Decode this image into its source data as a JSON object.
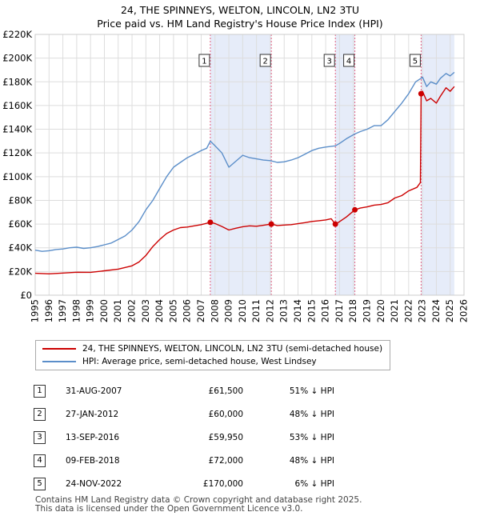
{
  "chart_data": {
    "type": "line",
    "title": "24, THE SPINNEYS, WELTON, LINCOLN, LN2 3TU",
    "subtitle": "Price paid vs. HM Land Registry's House Price Index (HPI)",
    "xlim": [
      1995,
      2026
    ],
    "ylim": [
      0,
      220000
    ],
    "x_ticks": [
      1995,
      1996,
      1997,
      1998,
      1999,
      2000,
      2001,
      2002,
      2003,
      2004,
      2005,
      2006,
      2007,
      2008,
      2009,
      2010,
      2011,
      2012,
      2013,
      2014,
      2015,
      2016,
      2017,
      2018,
      2019,
      2020,
      2021,
      2022,
      2023,
      2024,
      2025,
      2026
    ],
    "x_tick_labels": [
      "1995",
      "1996",
      "1997",
      "1998",
      "1999",
      "2000",
      "2001",
      "2002",
      "2003",
      "2004",
      "2005",
      "2006",
      "2007",
      "2008",
      "2009",
      "2010",
      "2011",
      "2012",
      "2013",
      "2014",
      "2015",
      "2016",
      "2017",
      "2018",
      "2019",
      "2020",
      "2021",
      "2022",
      "2023",
      "2024",
      "2025",
      "2026"
    ],
    "y_ticks": [
      0,
      20000,
      40000,
      60000,
      80000,
      100000,
      120000,
      140000,
      160000,
      180000,
      200000,
      220000
    ],
    "y_tick_labels": [
      "£0",
      "£20K",
      "£40K",
      "£60K",
      "£80K",
      "£100K",
      "£120K",
      "£140K",
      "£160K",
      "£180K",
      "£200K",
      "£220K"
    ],
    "shaded_ranges": [
      [
        2007.66,
        2012.07
      ],
      [
        2016.7,
        2018.11
      ],
      [
        2022.9,
        2025.3
      ]
    ],
    "series": [
      {
        "name": "24, THE SPINNEYS, WELTON, LINCOLN, LN2 3TU (semi-detached house)",
        "color": "#cc0000",
        "points": [
          [
            1995.0,
            18500
          ],
          [
            1996.0,
            18000
          ],
          [
            1997.0,
            18700
          ],
          [
            1998.0,
            19400
          ],
          [
            1999.0,
            19300
          ],
          [
            2000.0,
            20600
          ],
          [
            2001.0,
            22000
          ],
          [
            2002.0,
            24800
          ],
          [
            2002.5,
            28000
          ],
          [
            2003.0,
            33500
          ],
          [
            2003.5,
            41000
          ],
          [
            2004.0,
            47000
          ],
          [
            2004.5,
            52000
          ],
          [
            2005.0,
            55000
          ],
          [
            2005.5,
            57000
          ],
          [
            2006.0,
            57500
          ],
          [
            2006.5,
            58500
          ],
          [
            2007.0,
            59500
          ],
          [
            2007.66,
            61500
          ],
          [
            2008.0,
            60500
          ],
          [
            2008.5,
            58000
          ],
          [
            2009.0,
            55000
          ],
          [
            2009.5,
            56500
          ],
          [
            2010.0,
            57800
          ],
          [
            2010.5,
            58500
          ],
          [
            2011.0,
            58200
          ],
          [
            2011.5,
            59000
          ],
          [
            2012.07,
            60000
          ],
          [
            2012.5,
            58800
          ],
          [
            2013.0,
            59200
          ],
          [
            2013.5,
            59500
          ],
          [
            2014.0,
            60300
          ],
          [
            2014.5,
            61200
          ],
          [
            2015.0,
            62200
          ],
          [
            2015.5,
            62800
          ],
          [
            2016.0,
            63500
          ],
          [
            2016.4,
            64500
          ],
          [
            2016.7,
            59950
          ],
          [
            2017.0,
            62000
          ],
          [
            2017.5,
            66000
          ],
          [
            2018.11,
            72000
          ],
          [
            2018.5,
            73500
          ],
          [
            2019.0,
            74500
          ],
          [
            2019.5,
            76000
          ],
          [
            2020.0,
            76500
          ],
          [
            2020.5,
            78000
          ],
          [
            2021.0,
            82000
          ],
          [
            2021.5,
            84000
          ],
          [
            2022.0,
            88000
          ],
          [
            2022.6,
            91000
          ],
          [
            2022.85,
            95000
          ],
          [
            2022.9,
            170000
          ],
          [
            2023.0,
            172000
          ],
          [
            2023.3,
            164000
          ],
          [
            2023.6,
            166000
          ],
          [
            2024.0,
            162000
          ],
          [
            2024.3,
            168000
          ],
          [
            2024.7,
            175000
          ],
          [
            2025.0,
            172000
          ],
          [
            2025.3,
            176000
          ]
        ]
      },
      {
        "name": "HPI: Average price, semi-detached house, West Lindsey",
        "color": "#5b8ec9",
        "points": [
          [
            1995.0,
            38000
          ],
          [
            1995.5,
            37000
          ],
          [
            1996.0,
            37500
          ],
          [
            1996.5,
            38500
          ],
          [
            1997.0,
            39000
          ],
          [
            1997.5,
            40000
          ],
          [
            1998.0,
            40500
          ],
          [
            1998.5,
            39500
          ],
          [
            1999.0,
            40000
          ],
          [
            1999.5,
            41000
          ],
          [
            2000.0,
            42500
          ],
          [
            2000.5,
            44000
          ],
          [
            2001.0,
            47000
          ],
          [
            2001.5,
            50000
          ],
          [
            2002.0,
            55000
          ],
          [
            2002.5,
            62000
          ],
          [
            2003.0,
            72000
          ],
          [
            2003.5,
            80000
          ],
          [
            2004.0,
            90000
          ],
          [
            2004.5,
            100000
          ],
          [
            2005.0,
            108000
          ],
          [
            2005.5,
            112000
          ],
          [
            2006.0,
            116000
          ],
          [
            2006.5,
            119000
          ],
          [
            2007.0,
            122000
          ],
          [
            2007.4,
            124000
          ],
          [
            2007.66,
            130000
          ],
          [
            2008.0,
            126000
          ],
          [
            2008.5,
            120000
          ],
          [
            2009.0,
            108000
          ],
          [
            2009.5,
            113000
          ],
          [
            2010.0,
            118000
          ],
          [
            2010.5,
            116000
          ],
          [
            2011.0,
            115000
          ],
          [
            2011.5,
            114000
          ],
          [
            2012.0,
            113500
          ],
          [
            2012.5,
            112000
          ],
          [
            2013.0,
            112500
          ],
          [
            2013.5,
            114000
          ],
          [
            2014.0,
            116000
          ],
          [
            2014.5,
            119000
          ],
          [
            2015.0,
            122000
          ],
          [
            2015.5,
            124000
          ],
          [
            2016.0,
            125000
          ],
          [
            2016.7,
            126000
          ],
          [
            2017.0,
            128000
          ],
          [
            2017.5,
            132000
          ],
          [
            2018.1,
            136000
          ],
          [
            2018.5,
            138000
          ],
          [
            2019.0,
            140000
          ],
          [
            2019.5,
            143000
          ],
          [
            2020.0,
            143000
          ],
          [
            2020.5,
            148000
          ],
          [
            2021.0,
            155000
          ],
          [
            2021.5,
            162000
          ],
          [
            2022.0,
            170000
          ],
          [
            2022.5,
            180000
          ],
          [
            2022.9,
            183000
          ],
          [
            2023.0,
            184000
          ],
          [
            2023.3,
            176000
          ],
          [
            2023.6,
            180000
          ],
          [
            2024.0,
            178000
          ],
          [
            2024.3,
            183000
          ],
          [
            2024.7,
            187000
          ],
          [
            2025.0,
            185000
          ],
          [
            2025.3,
            188000
          ]
        ]
      }
    ],
    "sales": [
      {
        "label": "1",
        "x": 2007.66,
        "price": 61500
      },
      {
        "label": "2",
        "x": 2012.07,
        "price": 60000
      },
      {
        "label": "3",
        "x": 2016.7,
        "price": 59950
      },
      {
        "label": "4",
        "x": 2018.11,
        "price": 72000
      },
      {
        "label": "5",
        "x": 2022.9,
        "price": 170000
      }
    ]
  },
  "legend": {
    "property": "24, THE SPINNEYS, WELTON, LINCOLN, LN2 3TU (semi-detached house)",
    "hpi": "HPI: Average price, semi-detached house, West Lindsey"
  },
  "table": [
    {
      "num": "1",
      "date": "31-AUG-2007",
      "price": "£61,500",
      "diff": "51% ↓ HPI"
    },
    {
      "num": "2",
      "date": "27-JAN-2012",
      "price": "£60,000",
      "diff": "48% ↓ HPI"
    },
    {
      "num": "3",
      "date": "13-SEP-2016",
      "price": "£59,950",
      "diff": "53% ↓ HPI"
    },
    {
      "num": "4",
      "date": "09-FEB-2018",
      "price": "£72,000",
      "diff": "48% ↓ HPI"
    },
    {
      "num": "5",
      "date": "24-NOV-2022",
      "price": "£170,000",
      "diff": "6% ↓ HPI"
    }
  ],
  "footer": {
    "line1": "Contains HM Land Registry data © Crown copyright and database right 2025.",
    "line2": "This data is licensed under the Open Government Licence v3.0."
  }
}
